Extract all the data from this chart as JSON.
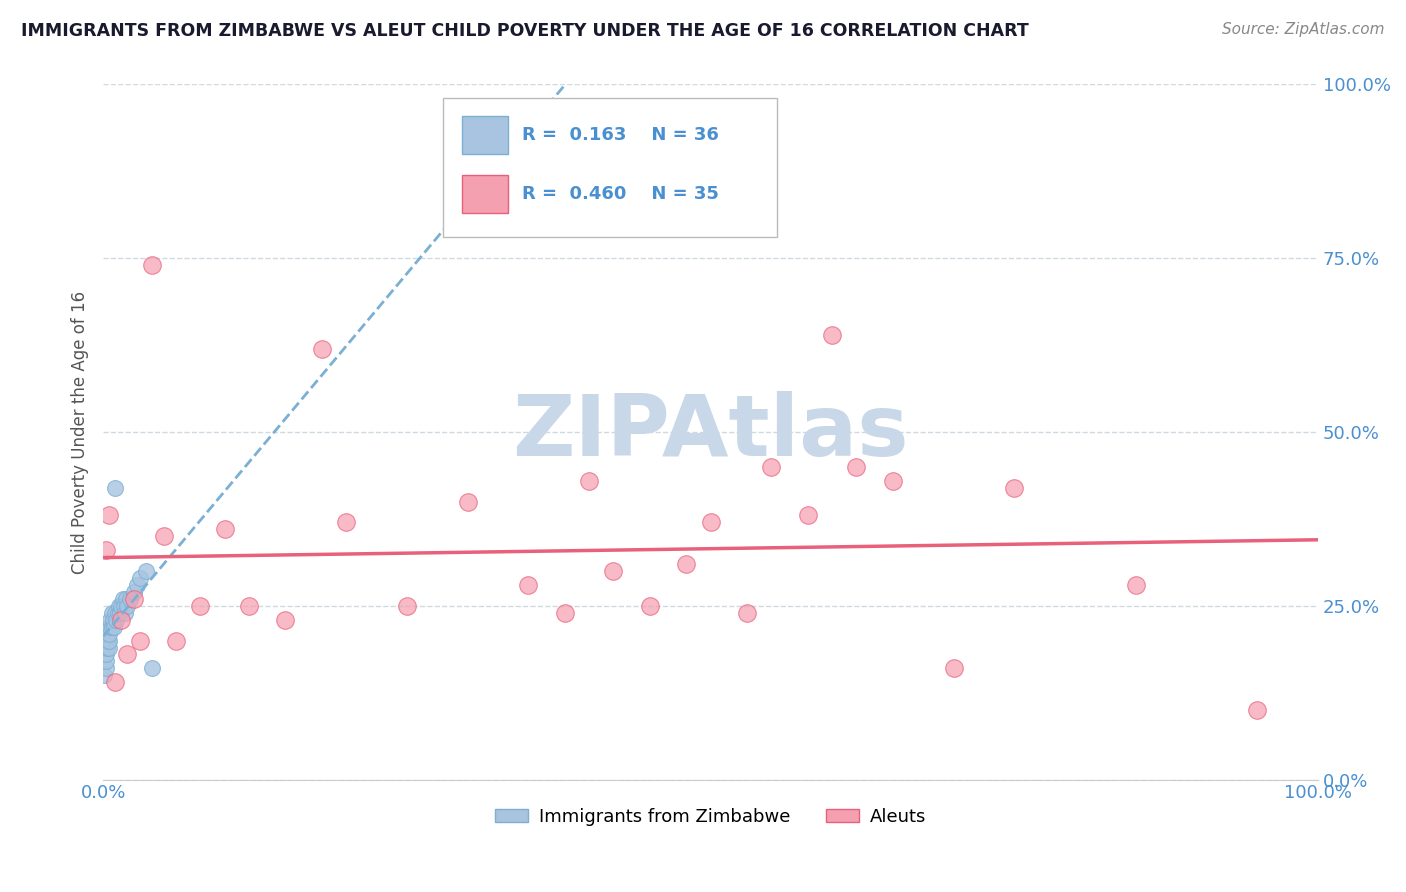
{
  "title": "IMMIGRANTS FROM ZIMBABWE VS ALEUT CHILD POVERTY UNDER THE AGE OF 16 CORRELATION CHART",
  "source": "Source: ZipAtlas.com",
  "ylabel": "Child Poverty Under the Age of 16",
  "legend_entries": [
    {
      "label": "Immigrants from Zimbabwe",
      "R": 0.163,
      "N": 36,
      "color": "#a8c4e0",
      "edge_color": "#7ab0d4",
      "line_color": "#7ab0d4",
      "line_style": "--"
    },
    {
      "label": "Aleuts",
      "R": 0.46,
      "N": 35,
      "color": "#f4a0b0",
      "edge_color": "#e8607a",
      "line_color": "#e8607a",
      "line_style": "-"
    }
  ],
  "watermark": "ZIPAtlas",
  "watermark_color": "#c8d8e8",
  "background_color": "#ffffff",
  "grid_color": "#d0d8e0",
  "title_color": "#1a1a2e",
  "tick_label_color": "#4a90d0",
  "ylabel_color": "#555555",
  "blue_x": [
    0.001,
    0.002,
    0.002,
    0.002,
    0.003,
    0.003,
    0.003,
    0.004,
    0.004,
    0.005,
    0.005,
    0.005,
    0.006,
    0.006,
    0.007,
    0.007,
    0.008,
    0.009,
    0.01,
    0.011,
    0.012,
    0.013,
    0.014,
    0.015,
    0.016,
    0.017,
    0.018,
    0.019,
    0.02,
    0.022,
    0.025,
    0.028,
    0.03,
    0.035,
    0.04,
    0.01
  ],
  "blue_y": [
    0.15,
    0.16,
    0.17,
    0.18,
    0.19,
    0.2,
    0.21,
    0.2,
    0.22,
    0.19,
    0.2,
    0.21,
    0.22,
    0.23,
    0.22,
    0.24,
    0.23,
    0.22,
    0.24,
    0.23,
    0.24,
    0.25,
    0.24,
    0.25,
    0.26,
    0.25,
    0.24,
    0.26,
    0.25,
    0.26,
    0.27,
    0.28,
    0.29,
    0.3,
    0.16,
    0.42
  ],
  "pink_x": [
    0.002,
    0.005,
    0.01,
    0.015,
    0.02,
    0.025,
    0.03,
    0.04,
    0.05,
    0.06,
    0.08,
    0.1,
    0.12,
    0.15,
    0.18,
    0.2,
    0.25,
    0.3,
    0.35,
    0.38,
    0.4,
    0.42,
    0.45,
    0.48,
    0.5,
    0.53,
    0.55,
    0.58,
    0.6,
    0.62,
    0.65,
    0.7,
    0.75,
    0.85,
    0.95
  ],
  "pink_y": [
    0.33,
    0.38,
    0.14,
    0.23,
    0.18,
    0.26,
    0.2,
    0.74,
    0.35,
    0.2,
    0.25,
    0.36,
    0.25,
    0.23,
    0.62,
    0.37,
    0.25,
    0.4,
    0.28,
    0.24,
    0.43,
    0.3,
    0.25,
    0.31,
    0.37,
    0.24,
    0.45,
    0.38,
    0.64,
    0.45,
    0.43,
    0.16,
    0.42,
    0.28,
    0.1
  ]
}
